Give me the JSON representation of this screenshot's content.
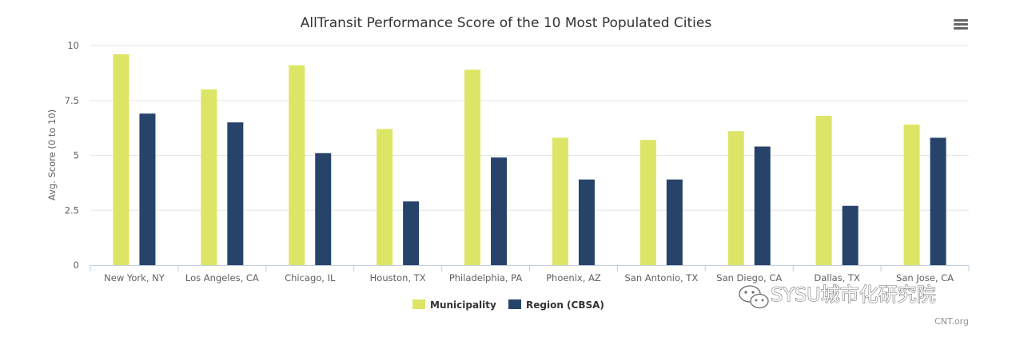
{
  "chart_data": {
    "type": "bar",
    "title": "AllTransit Performance Score of the 10 Most Populated Cities",
    "xlabel": "",
    "ylabel": "Avg. Score (0 to 10)",
    "ylim": [
      0,
      10
    ],
    "yticks": [
      "0",
      "2.5",
      "5",
      "7.5",
      "10"
    ],
    "ytick_values": [
      0,
      2.5,
      5,
      7.5,
      10
    ],
    "grid": true,
    "legend_position": "bottom-center",
    "categories": [
      "New York, NY",
      "Los Angeles, CA",
      "Chicago, IL",
      "Houston, TX",
      "Philadelphia, PA",
      "Phoenix, AZ",
      "San Antonio, TX",
      "San Diego, CA",
      "Dallas, TX",
      "San Jose, CA"
    ],
    "series": [
      {
        "name": "Municipality",
        "color": "#dde567",
        "values": [
          9.6,
          8.0,
          9.1,
          6.2,
          8.9,
          5.8,
          5.7,
          6.1,
          6.8,
          6.4
        ]
      },
      {
        "name": "Region (CBSA)",
        "color": "#27436a",
        "values": [
          6.9,
          6.5,
          5.1,
          2.9,
          4.9,
          3.9,
          3.9,
          5.4,
          2.7,
          5.8
        ]
      }
    ]
  },
  "credit": "CNT.org",
  "watermark": "SYSU城市化研究院",
  "menu_icon": "hamburger-menu-icon"
}
